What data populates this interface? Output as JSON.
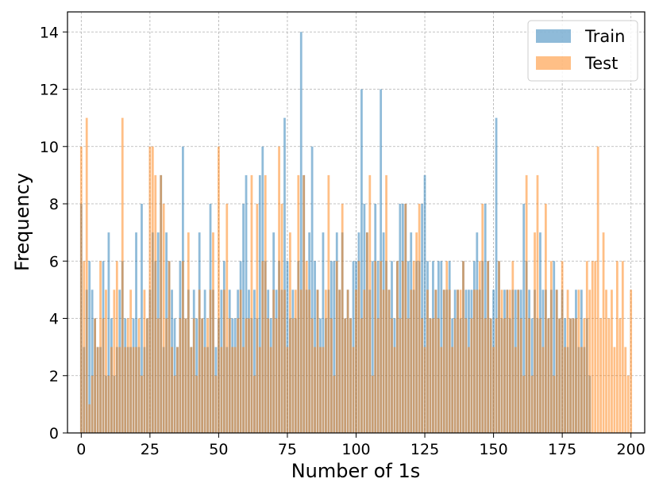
{
  "chart_data": {
    "type": "bar",
    "xlabel": "Number of 1s",
    "ylabel": "Frequency",
    "xlim": [
      -5,
      205
    ],
    "ylim": [
      0,
      14.7
    ],
    "xticks": [
      0,
      25,
      50,
      75,
      100,
      125,
      150,
      175,
      200
    ],
    "yticks": [
      0,
      2,
      4,
      6,
      8,
      10,
      12,
      14
    ],
    "grid": true,
    "legend_position": "top-right",
    "series": [
      {
        "name": "Train",
        "color": "#1f77b4",
        "alpha": 0.5,
        "x_start": 0,
        "values": [
          8,
          3,
          5,
          6,
          5,
          4,
          3,
          3,
          6,
          2,
          7,
          4,
          2,
          3,
          5,
          6,
          4,
          3,
          3,
          4,
          7,
          3,
          8,
          3,
          4,
          5,
          7,
          6,
          7,
          9,
          3,
          7,
          6,
          5,
          4,
          3,
          6,
          10,
          4,
          5,
          3,
          5,
          4,
          7,
          4,
          5,
          3,
          8,
          5,
          3,
          4,
          5,
          6,
          3,
          5,
          4,
          4,
          5,
          6,
          8,
          9,
          5,
          4,
          5,
          4,
          9,
          10,
          6,
          5,
          4,
          7,
          5,
          6,
          5,
          11,
          6,
          4,
          5,
          4,
          6,
          14,
          9,
          5,
          7,
          10,
          6,
          5,
          4,
          7,
          4,
          5,
          6,
          6,
          7,
          5,
          7,
          4,
          5,
          4,
          6,
          6,
          7,
          12,
          8,
          7,
          5,
          6,
          8,
          6,
          12,
          7,
          6,
          5,
          6,
          4,
          6,
          8,
          8,
          8,
          6,
          7,
          5,
          6,
          6,
          8,
          9,
          6,
          4,
          6,
          5,
          6,
          6,
          5,
          5,
          6,
          4,
          5,
          5,
          4,
          6,
          5,
          5,
          5,
          6,
          7,
          5,
          6,
          8,
          6,
          4,
          5,
          11,
          6,
          4,
          5,
          5,
          4,
          5,
          5,
          5,
          5,
          8,
          6,
          5,
          4,
          5,
          4,
          7,
          5,
          5,
          4,
          5,
          6,
          5,
          4,
          5,
          4,
          3,
          4,
          4,
          5,
          3,
          5,
          3,
          4,
          2
        ]
      },
      {
        "name": "Test",
        "color": "#ff7f0e",
        "alpha": 0.5,
        "x_start": 0,
        "values": [
          10,
          6,
          11,
          1,
          2,
          4,
          3,
          6,
          4,
          5,
          2,
          3,
          5,
          6,
          3,
          11,
          3,
          4,
          5,
          3,
          3,
          4,
          2,
          5,
          4,
          10,
          10,
          9,
          4,
          9,
          8,
          4,
          6,
          3,
          2,
          3,
          4,
          6,
          4,
          7,
          3,
          4,
          2,
          5,
          4,
          3,
          4,
          5,
          7,
          2,
          10,
          3,
          5,
          8,
          4,
          3,
          3,
          4,
          5,
          3,
          4,
          4,
          9,
          2,
          8,
          3,
          6,
          9,
          4,
          3,
          5,
          4,
          10,
          8,
          5,
          3,
          7,
          4,
          5,
          9,
          5,
          9,
          6,
          5,
          4,
          3,
          5,
          3,
          3,
          5,
          9,
          4,
          2,
          6,
          5,
          8,
          4,
          5,
          4,
          3,
          5,
          6,
          4,
          5,
          7,
          9,
          2,
          6,
          4,
          6,
          5,
          9,
          5,
          4,
          3,
          6,
          4,
          6,
          8,
          4,
          5,
          6,
          7,
          8,
          4,
          3,
          5,
          4,
          4,
          5,
          4,
          3,
          5,
          6,
          5,
          3,
          4,
          5,
          5,
          6,
          4,
          3,
          4,
          5,
          5,
          6,
          8,
          4,
          6,
          4,
          3,
          4,
          6,
          5,
          4,
          5,
          5,
          6,
          3,
          5,
          4,
          2,
          9,
          4,
          2,
          7,
          9,
          4,
          3,
          8,
          4,
          6,
          2,
          5,
          4,
          6,
          3,
          5,
          4,
          4,
          4,
          5,
          3,
          4,
          6,
          5,
          6,
          6,
          10,
          4,
          7,
          5,
          4,
          5,
          3,
          6,
          4,
          6,
          3,
          2,
          5
        ]
      }
    ]
  }
}
